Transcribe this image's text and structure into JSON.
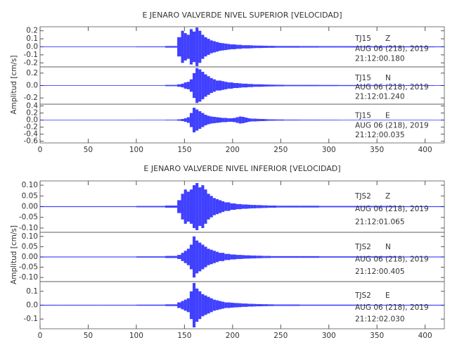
{
  "chart_data": [
    {
      "type": "seismogram",
      "title": "E JENARO VALVERDE NIVEL SUPERIOR [VELOCIDAD]",
      "y_label": "Amplitud [cm/s]",
      "xlim": [
        0,
        420
      ],
      "xticks": [
        0,
        50,
        100,
        150,
        200,
        250,
        300,
        350,
        400
      ],
      "x": [
        0,
        40,
        80,
        120,
        140,
        145,
        148,
        151,
        154,
        157,
        160,
        163,
        166,
        169,
        172,
        175,
        178,
        181,
        184,
        187,
        190,
        193,
        196,
        199,
        202,
        205,
        208,
        211,
        214,
        217,
        220,
        223,
        226,
        229,
        232,
        235,
        238,
        241,
        244,
        247,
        260,
        280,
        300,
        320,
        340,
        360,
        380,
        400,
        420
      ],
      "panels": [
        {
          "station": "TJ15",
          "component": "Z",
          "date": "AUG 06 (218), 2019",
          "time": "21:12:00.180",
          "color": "#0000ff",
          "ylim": [
            -0.25,
            0.25
          ],
          "yticks": [
            -0.2,
            -0.1,
            {
              "value": 0,
              "label": "0.0"
            },
            0.1,
            0.2
          ],
          "values": [
            0.004,
            0.004,
            0.004,
            0.005,
            0.01,
            0.12,
            0.2,
            0.17,
            0.15,
            0.22,
            0.19,
            0.24,
            0.2,
            0.15,
            0.12,
            0.1,
            0.08,
            0.07,
            0.06,
            0.05,
            0.045,
            0.04,
            0.035,
            0.03,
            0.03,
            0.025,
            0.025,
            0.02,
            0.02,
            0.02,
            0.018,
            0.016,
            0.015,
            0.015,
            0.014,
            0.013,
            0.012,
            0.012,
            0.011,
            0.01,
            0.01,
            0.009,
            0.008,
            0.008,
            0.007,
            0.007,
            0.006,
            0.006,
            0.005
          ]
        },
        {
          "station": "TJ15",
          "component": "N",
          "date": "AUG 06 (218), 2019",
          "time": "21:12:01.240",
          "color": "#0000ff",
          "ylim": [
            -0.3,
            0.3
          ],
          "yticks": [
            -0.2,
            {
              "value": 0,
              "label": "0.0"
            },
            0.2
          ],
          "values": [
            0.005,
            0.005,
            0.005,
            0.005,
            0.01,
            0.02,
            0.03,
            0.05,
            0.06,
            0.1,
            0.2,
            0.28,
            0.26,
            0.22,
            0.18,
            0.15,
            0.12,
            0.1,
            0.08,
            0.08,
            0.07,
            0.06,
            0.05,
            0.05,
            0.04,
            0.04,
            0.035,
            0.03,
            0.03,
            0.025,
            0.025,
            0.02,
            0.02,
            0.02,
            0.018,
            0.016,
            0.015,
            0.014,
            0.013,
            0.012,
            0.01,
            0.01,
            0.009,
            0.008,
            0.008,
            0.007,
            0.006,
            0.006,
            0.005
          ]
        },
        {
          "station": "TJ15",
          "component": "E",
          "date": "AUG 06 (218), 2019",
          "time": "21:12:00.035",
          "color": "#0000ff",
          "ylim": [
            -0.65,
            0.45
          ],
          "yticks": [
            -0.6,
            -0.4,
            -0.2,
            {
              "value": 0,
              "label": "0.0"
            },
            0.2,
            0.4
          ],
          "values": [
            0.005,
            0.005,
            0.005,
            0.006,
            0.01,
            0.02,
            0.03,
            0.05,
            0.08,
            0.2,
            0.35,
            0.3,
            0.25,
            0.2,
            0.15,
            0.12,
            0.1,
            0.09,
            0.08,
            0.07,
            0.06,
            0.06,
            0.05,
            0.05,
            0.06,
            0.08,
            0.1,
            0.09,
            0.07,
            0.05,
            0.04,
            0.04,
            0.035,
            0.03,
            0.03,
            0.025,
            0.02,
            0.02,
            0.018,
            0.016,
            0.012,
            0.01,
            0.009,
            0.008,
            0.007,
            0.007,
            0.006,
            0.006,
            0.005
          ]
        }
      ]
    },
    {
      "type": "seismogram",
      "title": "E JENARO VALVERDE NIVEL INFERIOR [VELOCIDAD]",
      "y_label": "Amplitud [cm/s]",
      "xlim": [
        0,
        420
      ],
      "xticks": [
        0,
        50,
        100,
        150,
        200,
        250,
        300,
        350,
        400
      ],
      "x": [
        0,
        40,
        80,
        120,
        140,
        145,
        148,
        151,
        154,
        157,
        160,
        163,
        166,
        169,
        172,
        175,
        178,
        181,
        184,
        187,
        190,
        193,
        196,
        199,
        202,
        205,
        208,
        211,
        214,
        217,
        220,
        223,
        226,
        229,
        232,
        235,
        238,
        241,
        244,
        247,
        260,
        280,
        300,
        320,
        340,
        360,
        380,
        400,
        420
      ],
      "panels": [
        {
          "station": "TJS2",
          "component": "Z",
          "date": "AUG 06 (218), 2019",
          "time": "21:12:01.065",
          "color": "#0000ff",
          "ylim": [
            -0.12,
            0.12
          ],
          "yticks": [
            {
              "value": -0.1,
              "label": "-0.10"
            },
            {
              "value": -0.05,
              "label": "-0.05"
            },
            {
              "value": 0,
              "label": "0.00"
            },
            {
              "value": 0.05,
              "label": "0.05"
            },
            {
              "value": 0.1,
              "label": "0.10"
            }
          ],
          "values": [
            0.002,
            0.002,
            0.002,
            0.003,
            0.005,
            0.03,
            0.06,
            0.08,
            0.07,
            0.08,
            0.1,
            0.11,
            0.09,
            0.1,
            0.08,
            0.06,
            0.05,
            0.04,
            0.035,
            0.03,
            0.025,
            0.02,
            0.02,
            0.015,
            0.015,
            0.012,
            0.012,
            0.01,
            0.01,
            0.009,
            0.008,
            0.008,
            0.007,
            0.007,
            0.006,
            0.006,
            0.005,
            0.005,
            0.005,
            0.004,
            0.004,
            0.004,
            0.003,
            0.003,
            0.003,
            0.003,
            0.002,
            0.002,
            0.002
          ]
        },
        {
          "station": "TJS2",
          "component": "N",
          "date": "AUG 06 (218), 2019",
          "time": "21:12:00.405",
          "color": "#0000ff",
          "ylim": [
            -0.12,
            0.12
          ],
          "yticks": [
            {
              "value": -0.1,
              "label": "-0.10"
            },
            {
              "value": -0.05,
              "label": "-0.05"
            },
            {
              "value": 0,
              "label": "0.00"
            },
            {
              "value": 0.05,
              "label": "0.05"
            },
            {
              "value": 0.1,
              "label": "0.10"
            }
          ],
          "values": [
            0.002,
            0.002,
            0.002,
            0.003,
            0.005,
            0.01,
            0.02,
            0.03,
            0.04,
            0.06,
            0.1,
            0.08,
            0.07,
            0.06,
            0.05,
            0.04,
            0.035,
            0.03,
            0.025,
            0.02,
            0.02,
            0.015,
            0.015,
            0.012,
            0.012,
            0.01,
            0.01,
            0.009,
            0.008,
            0.008,
            0.007,
            0.007,
            0.006,
            0.006,
            0.005,
            0.005,
            0.005,
            0.004,
            0.004,
            0.004,
            0.004,
            0.004,
            0.003,
            0.003,
            0.003,
            0.003,
            0.002,
            0.002,
            0.002
          ]
        },
        {
          "station": "TJS2",
          "component": "E",
          "date": "AUG 06 (218), 2019",
          "time": "21:12:02.030",
          "color": "#0000ff",
          "ylim": [
            -0.17,
            0.17
          ],
          "yticks": [
            -0.1,
            {
              "value": 0,
              "label": "0.0"
            },
            0.1
          ],
          "values": [
            0.003,
            0.003,
            0.003,
            0.004,
            0.006,
            0.02,
            0.03,
            0.04,
            0.05,
            0.1,
            0.16,
            0.12,
            0.1,
            0.08,
            0.07,
            0.06,
            0.05,
            0.04,
            0.035,
            0.03,
            0.025,
            0.02,
            0.02,
            0.018,
            0.016,
            0.015,
            0.014,
            0.012,
            0.012,
            0.01,
            0.01,
            0.009,
            0.008,
            0.008,
            0.007,
            0.007,
            0.006,
            0.006,
            0.005,
            0.005,
            0.005,
            0.004,
            0.004,
            0.004,
            0.003,
            0.003,
            0.003,
            0.003,
            0.003
          ]
        }
      ]
    }
  ]
}
